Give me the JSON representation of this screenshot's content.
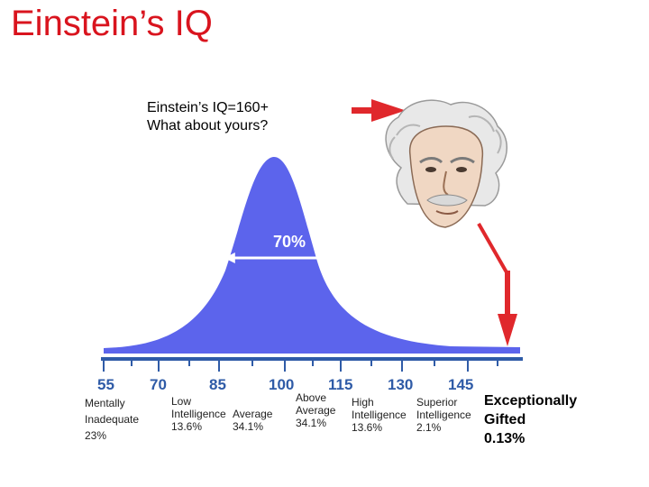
{
  "title": "Einstein’s IQ",
  "caption": {
    "line1": "Einstein’s IQ=160+",
    "line2": "What about yours?"
  },
  "curve_label": "70%",
  "axis_ticks": [
    "55",
    "70",
    "85",
    "100",
    "115",
    "130",
    "145"
  ],
  "categories": [
    {
      "lines": [
        "Mentally",
        "Inadequate",
        "23%"
      ]
    },
    {
      "lines": [
        "Low",
        "Intelligence",
        "13.6%"
      ]
    },
    {
      "lines": [
        "Average",
        "34.1%"
      ]
    },
    {
      "lines": [
        "Above",
        "Average",
        "34.1%"
      ]
    },
    {
      "lines": [
        "High",
        "Intelligence",
        "13.6%"
      ]
    },
    {
      "lines": [
        "Superior",
        "Intelligence",
        "2.1%"
      ]
    },
    {
      "lines": [
        "Exceptionally",
        "Gifted",
        "0.13%"
      ]
    }
  ],
  "colors": {
    "title": "#d9141e",
    "curve_fill": "#5c64ec",
    "axis": "#2f5ba7",
    "arrow": "#e0282c"
  },
  "icons": {
    "portrait": "einstein-face-illustration"
  }
}
